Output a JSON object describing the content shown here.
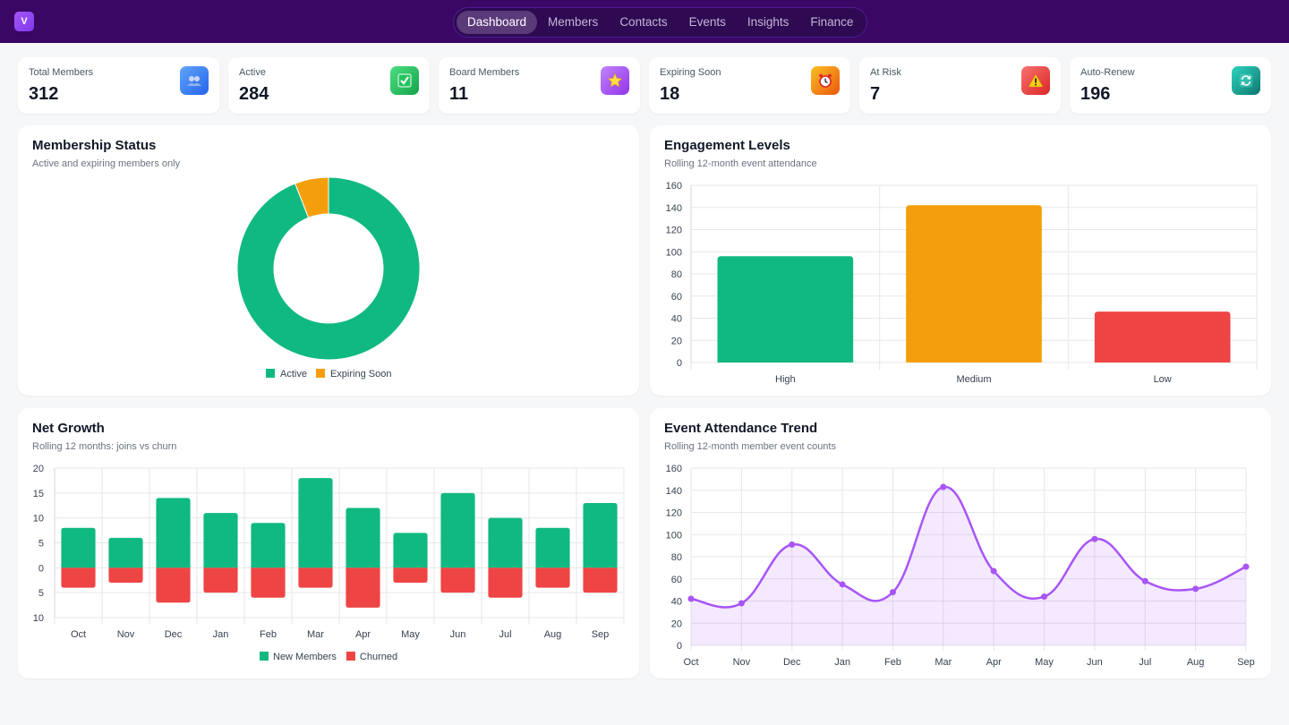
{
  "app": {
    "logo_letter": "V"
  },
  "nav": {
    "items": [
      {
        "label": "Dashboard",
        "active": true
      },
      {
        "label": "Members",
        "active": false
      },
      {
        "label": "Contacts",
        "active": false
      },
      {
        "label": "Events",
        "active": false
      },
      {
        "label": "Insights",
        "active": false
      },
      {
        "label": "Finance",
        "active": false
      }
    ]
  },
  "kpis": [
    {
      "label": "Total Members",
      "value": "312",
      "icon": "members-icon",
      "color": "#3b82f6"
    },
    {
      "label": "Active",
      "value": "284",
      "icon": "check-icon",
      "color": "#22c55e"
    },
    {
      "label": "Board Members",
      "value": "11",
      "icon": "star-icon",
      "color": "#a855f7"
    },
    {
      "label": "Expiring Soon",
      "value": "18",
      "icon": "alarm-clock-icon",
      "color": "#f59e0b"
    },
    {
      "label": "At Risk",
      "value": "7",
      "icon": "warning-icon",
      "color": "#ef4444"
    },
    {
      "label": "Auto-Renew",
      "value": "196",
      "icon": "refresh-icon",
      "color": "#14b8a6"
    }
  ],
  "membership_status": {
    "title": "Membership Status",
    "subtitle": "Active and expiring members only"
  },
  "engagement": {
    "title": "Engagement Levels",
    "subtitle": "Rolling 12-month event attendance"
  },
  "net_growth": {
    "title": "Net Growth",
    "subtitle": "Rolling 12 months: joins vs churn"
  },
  "attendance": {
    "title": "Event Attendance Trend",
    "subtitle": "Rolling 12-month member event counts"
  },
  "chart_data": [
    {
      "type": "pie",
      "title": "Membership Status",
      "donut": true,
      "categories": [
        "Active",
        "Expiring Soon"
      ],
      "values": [
        284,
        18
      ],
      "colors": [
        "#10b981",
        "#f59e0b"
      ],
      "legend": "bottom"
    },
    {
      "type": "bar",
      "title": "Engagement Levels",
      "categories": [
        "High",
        "Medium",
        "Low"
      ],
      "values": [
        96,
        142,
        46
      ],
      "colors": [
        "#10b981",
        "#f59e0b",
        "#ef4444"
      ],
      "ylim": [
        0,
        160
      ],
      "yticks": [
        0,
        20,
        40,
        60,
        80,
        100,
        120,
        140,
        160
      ],
      "grid": true
    },
    {
      "type": "bar",
      "title": "Net Growth",
      "stacked": true,
      "categories": [
        "Oct",
        "Nov",
        "Dec",
        "Jan",
        "Feb",
        "Mar",
        "Apr",
        "May",
        "Jun",
        "Jul",
        "Aug",
        "Sep"
      ],
      "series": [
        {
          "name": "New Members",
          "values": [
            8,
            6,
            14,
            11,
            9,
            18,
            12,
            7,
            15,
            10,
            8,
            13
          ],
          "color": "#10b981"
        },
        {
          "name": "Churned",
          "values": [
            -4,
            -3,
            -7,
            -5,
            -6,
            -4,
            -8,
            -3,
            -5,
            -6,
            -4,
            -5
          ],
          "color": "#ef4444"
        }
      ],
      "ylim": [
        -10,
        20
      ],
      "yticks": [
        20,
        15,
        10,
        5,
        0,
        -5,
        -10
      ],
      "ytick_labels": [
        "20",
        "15",
        "10",
        "5",
        "0",
        "5",
        "10"
      ],
      "grid": true,
      "legend": "bottom"
    },
    {
      "type": "area",
      "title": "Event Attendance Trend",
      "x": [
        "Oct",
        "Nov",
        "Dec",
        "Jan",
        "Feb",
        "Mar",
        "Apr",
        "May",
        "Jun",
        "Jul",
        "Aug",
        "Sep"
      ],
      "series": [
        {
          "values": [
            42,
            38,
            91,
            55,
            48,
            143,
            67,
            44,
            96,
            58,
            51,
            71
          ],
          "color": "#a855f7"
        }
      ],
      "ylim": [
        0,
        160
      ],
      "yticks": [
        0,
        20,
        40,
        60,
        80,
        100,
        120,
        140,
        160
      ],
      "grid": true
    }
  ]
}
